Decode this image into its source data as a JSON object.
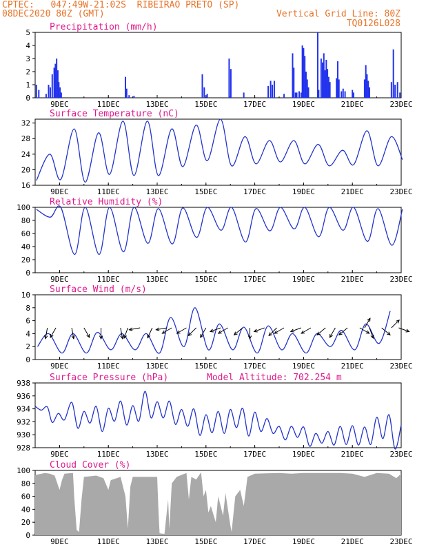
{
  "header": {
    "line1": "CPTEC:   047:49W-21:02S  RIBEIRAO PRETO (SP)",
    "line2": "08DEC2020 80Z (GMT)",
    "grid_note": "Vertical Grid Line: 80Z",
    "code": "TQ0126L028"
  },
  "colors": {
    "header": "#e8742a",
    "title": "#e0188c",
    "line": "#2233cc",
    "bar": "#2233ee",
    "cloud": "#a9a9a9"
  },
  "day_labels": [
    "9DEC",
    "11DEC",
    "13DEC",
    "15DEC",
    "17DEC",
    "19DEC",
    "21DEC",
    "23DEC"
  ],
  "chart_data": [
    {
      "type": "bar",
      "title": "Precipitation (mm/h)",
      "ylim": [
        0,
        5
      ],
      "yticks": [
        0,
        1,
        2,
        3,
        4,
        5
      ],
      "x_range_days": [
        8.0,
        23.0
      ],
      "events": [
        [
          8.05,
          1.0
        ],
        [
          8.15,
          0.6
        ],
        [
          8.45,
          0.3
        ],
        [
          8.55,
          1.0
        ],
        [
          8.62,
          0.8
        ],
        [
          8.7,
          1.8
        ],
        [
          8.78,
          2.3
        ],
        [
          8.83,
          2.6
        ],
        [
          8.88,
          3.0
        ],
        [
          8.93,
          2.1
        ],
        [
          8.97,
          1.2
        ],
        [
          9.02,
          0.8
        ],
        [
          9.07,
          0.4
        ],
        [
          11.7,
          1.6
        ],
        [
          11.75,
          0.7
        ],
        [
          11.85,
          0.2
        ],
        [
          12.05,
          0.15
        ],
        [
          14.85,
          1.8
        ],
        [
          14.93,
          0.8
        ],
        [
          15.05,
          0.3
        ],
        [
          15.95,
          3.0
        ],
        [
          16.02,
          2.2
        ],
        [
          16.55,
          0.4
        ],
        [
          17.55,
          0.9
        ],
        [
          17.65,
          1.3
        ],
        [
          17.72,
          1.0
        ],
        [
          17.8,
          1.3
        ],
        [
          18.2,
          0.3
        ],
        [
          18.55,
          3.4
        ],
        [
          18.6,
          2.3
        ],
        [
          18.67,
          0.4
        ],
        [
          18.72,
          0.4
        ],
        [
          18.82,
          0.5
        ],
        [
          18.9,
          0.4
        ],
        [
          18.95,
          4.0
        ],
        [
          19.0,
          3.8
        ],
        [
          19.05,
          3.2
        ],
        [
          19.1,
          2.0
        ],
        [
          19.15,
          1.4
        ],
        [
          19.2,
          0.8
        ],
        [
          19.58,
          5.0
        ],
        [
          19.62,
          0.6
        ],
        [
          19.72,
          3.0
        ],
        [
          19.78,
          2.7
        ],
        [
          19.83,
          3.4
        ],
        [
          19.88,
          2.1
        ],
        [
          19.93,
          2.9
        ],
        [
          19.98,
          2.2
        ],
        [
          20.03,
          1.6
        ],
        [
          20.08,
          1.2
        ],
        [
          20.35,
          1.5
        ],
        [
          20.4,
          2.8
        ],
        [
          20.45,
          1.4
        ],
        [
          20.55,
          0.5
        ],
        [
          20.62,
          0.7
        ],
        [
          20.7,
          0.5
        ],
        [
          21.0,
          0.6
        ],
        [
          21.05,
          0.4
        ],
        [
          21.5,
          1.4
        ],
        [
          21.55,
          2.5
        ],
        [
          21.6,
          1.8
        ],
        [
          21.65,
          1.3
        ],
        [
          21.7,
          0.8
        ],
        [
          22.6,
          1.2
        ],
        [
          22.68,
          3.7
        ],
        [
          22.75,
          1.0
        ],
        [
          22.85,
          1.2
        ],
        [
          22.95,
          0.4
        ]
      ]
    },
    {
      "type": "line",
      "title": "Surface Temperature (nC)",
      "ylim": [
        16,
        33
      ],
      "yticks": [
        16,
        20,
        24,
        28,
        32
      ],
      "daily_min": [
        17.2,
        17.5,
        16.8,
        18.8,
        18.5,
        18.5,
        20.8,
        22.3,
        21.0,
        21.5,
        22.0,
        21.5,
        21.0,
        21.3,
        21.0,
        22.6
      ],
      "daily_max": [
        24.0,
        30.5,
        29.5,
        32.5,
        32.5,
        30.5,
        31.5,
        33.0,
        28.5,
        27.5,
        27.5,
        26.5,
        25.0,
        30.0,
        28.5
      ]
    },
    {
      "type": "line",
      "title": "Relative Humidity (%)",
      "ylim": [
        0,
        100
      ],
      "yticks": [
        0,
        20,
        40,
        60,
        80,
        100
      ],
      "daily_max": [
        97,
        100,
        100,
        100,
        100,
        98,
        99,
        100,
        100,
        98,
        100,
        100,
        100,
        100,
        98,
        97
      ],
      "daily_min": [
        85,
        28,
        28,
        32,
        45,
        44,
        54,
        65,
        47,
        64,
        67,
        55,
        65,
        48,
        42
      ]
    },
    {
      "type": "line",
      "title": "Surface Wind (m/s)",
      "ylim": [
        0,
        10
      ],
      "yticks": [
        0,
        2,
        4,
        6,
        8,
        10
      ],
      "daily_min": [
        2.0,
        1.0,
        1.0,
        1.5,
        1.5,
        1.0,
        2.0,
        1.5,
        1.5,
        1.0,
        1.5,
        1.0,
        2.0,
        1.5,
        2.5
      ],
      "daily_max": [
        4.0,
        4.0,
        4.2,
        4.0,
        4.0,
        6.5,
        8.0,
        5.5,
        5.0,
        5.2,
        4.0,
        4.0,
        4.5,
        5.5,
        7.5
      ],
      "arrows": [
        [
          8.5,
          -100
        ],
        [
          8.85,
          -120
        ],
        [
          9.5,
          -80
        ],
        [
          10.0,
          -60
        ],
        [
          10.7,
          -90
        ],
        [
          11.5,
          -80
        ],
        [
          11.8,
          -110
        ],
        [
          12.3,
          -170
        ],
        [
          12.8,
          -115
        ],
        [
          13.4,
          -170
        ],
        [
          13.6,
          -150
        ],
        [
          14.2,
          -150
        ],
        [
          14.6,
          -135
        ],
        [
          15.0,
          -120
        ],
        [
          15.6,
          -160
        ],
        [
          15.9,
          -150
        ],
        [
          16.5,
          -140
        ],
        [
          16.8,
          -90
        ],
        [
          17.4,
          -160
        ],
        [
          17.9,
          -135
        ],
        [
          18.2,
          -150
        ],
        [
          18.9,
          -160
        ],
        [
          19.3,
          -150
        ],
        [
          19.9,
          -140
        ],
        [
          20.3,
          -120
        ],
        [
          20.8,
          -140
        ],
        [
          21.3,
          -30
        ],
        [
          21.7,
          -70
        ],
        [
          22.2,
          -40
        ],
        [
          22.9,
          -20
        ],
        [
          21.5,
          60
        ],
        [
          22.6,
          45
        ]
      ]
    },
    {
      "type": "line",
      "title": "Surface Pressure (hPa)",
      "annotation": "Model Altitude: 702.254 m",
      "ylim": [
        928,
        938
      ],
      "yticks": [
        928,
        930,
        932,
        934,
        936,
        938
      ],
      "series_points": [
        [
          8.0,
          934.4
        ],
        [
          8.25,
          933.8
        ],
        [
          8.5,
          934.3
        ],
        [
          8.7,
          931.9
        ],
        [
          8.95,
          933.3
        ],
        [
          9.2,
          932.3
        ],
        [
          9.5,
          935.0
        ],
        [
          9.75,
          931.0
        ],
        [
          10.0,
          933.6
        ],
        [
          10.25,
          931.8
        ],
        [
          10.5,
          934.4
        ],
        [
          10.75,
          930.5
        ],
        [
          11.0,
          934.1
        ],
        [
          11.25,
          932.1
        ],
        [
          11.5,
          935.2
        ],
        [
          11.75,
          931.5
        ],
        [
          12.0,
          934.5
        ],
        [
          12.25,
          932.1
        ],
        [
          12.5,
          936.7
        ],
        [
          12.75,
          932.6
        ],
        [
          13.0,
          935.1
        ],
        [
          13.25,
          932.6
        ],
        [
          13.5,
          935.2
        ],
        [
          13.75,
          931.6
        ],
        [
          14.0,
          933.9
        ],
        [
          14.25,
          931.3
        ],
        [
          14.5,
          934.0
        ],
        [
          14.75,
          929.9
        ],
        [
          15.0,
          933.1
        ],
        [
          15.25,
          930.3
        ],
        [
          15.5,
          933.6
        ],
        [
          15.75,
          930.2
        ],
        [
          16.0,
          933.9
        ],
        [
          16.25,
          931.1
        ],
        [
          16.5,
          934.1
        ],
        [
          16.75,
          929.8
        ],
        [
          17.0,
          933.5
        ],
        [
          17.25,
          930.5
        ],
        [
          17.5,
          932.5
        ],
        [
          17.75,
          930.2
        ],
        [
          18.0,
          931.3
        ],
        [
          18.25,
          929.2
        ],
        [
          18.5,
          931.3
        ],
        [
          18.75,
          929.6
        ],
        [
          19.0,
          931.2
        ],
        [
          19.25,
          928.2
        ],
        [
          19.5,
          930.2
        ],
        [
          19.75,
          928.7
        ],
        [
          20.0,
          930.5
        ],
        [
          20.25,
          928.4
        ],
        [
          20.5,
          931.3
        ],
        [
          20.75,
          928.5
        ],
        [
          21.0,
          931.4
        ],
        [
          21.25,
          928.4
        ],
        [
          21.5,
          931.2
        ],
        [
          21.75,
          928.5
        ],
        [
          22.0,
          932.7
        ],
        [
          22.25,
          929.4
        ],
        [
          22.5,
          933.1
        ],
        [
          22.75,
          927.8
        ],
        [
          23.0,
          931.5
        ]
      ]
    },
    {
      "type": "area",
      "title": "Cloud Cover (%)",
      "ylim": [
        0,
        100
      ],
      "yticks": [
        0,
        20,
        40,
        60,
        80,
        100
      ],
      "series_points": [
        [
          8.0,
          93
        ],
        [
          8.4,
          96
        ],
        [
          8.6,
          95
        ],
        [
          8.8,
          92
        ],
        [
          9.0,
          70
        ],
        [
          9.1,
          85
        ],
        [
          9.2,
          95
        ],
        [
          9.55,
          96
        ],
        [
          9.6,
          60
        ],
        [
          9.7,
          8
        ],
        [
          9.8,
          5
        ],
        [
          9.9,
          55
        ],
        [
          10.0,
          90
        ],
        [
          10.5,
          92
        ],
        [
          10.8,
          88
        ],
        [
          11.0,
          70
        ],
        [
          11.1,
          85
        ],
        [
          11.5,
          90
        ],
        [
          11.7,
          60
        ],
        [
          11.8,
          10
        ],
        [
          11.9,
          75
        ],
        [
          12.0,
          90
        ],
        [
          13.0,
          90
        ],
        [
          13.05,
          40
        ],
        [
          13.1,
          3
        ],
        [
          13.3,
          2
        ],
        [
          13.45,
          55
        ],
        [
          13.5,
          10
        ],
        [
          13.6,
          80
        ],
        [
          13.8,
          90
        ],
        [
          14.2,
          96
        ],
        [
          14.3,
          55
        ],
        [
          14.4,
          90
        ],
        [
          14.6,
          86
        ],
        [
          14.8,
          97
        ],
        [
          14.9,
          60
        ],
        [
          15.0,
          70
        ],
        [
          15.1,
          35
        ],
        [
          15.2,
          45
        ],
        [
          15.4,
          20
        ],
        [
          15.5,
          60
        ],
        [
          15.7,
          30
        ],
        [
          15.8,
          65
        ],
        [
          16.0,
          15
        ],
        [
          16.05,
          5
        ],
        [
          16.2,
          60
        ],
        [
          16.4,
          70
        ],
        [
          16.55,
          45
        ],
        [
          16.7,
          90
        ],
        [
          17.0,
          95
        ],
        [
          18.0,
          96
        ],
        [
          18.5,
          95
        ],
        [
          19.0,
          96
        ],
        [
          19.5,
          96
        ],
        [
          20.0,
          96
        ],
        [
          20.5,
          96
        ],
        [
          21.0,
          95
        ],
        [
          21.5,
          90
        ],
        [
          22.0,
          96
        ],
        [
          22.5,
          95
        ],
        [
          22.8,
          88
        ],
        [
          23.0,
          95
        ]
      ]
    }
  ]
}
